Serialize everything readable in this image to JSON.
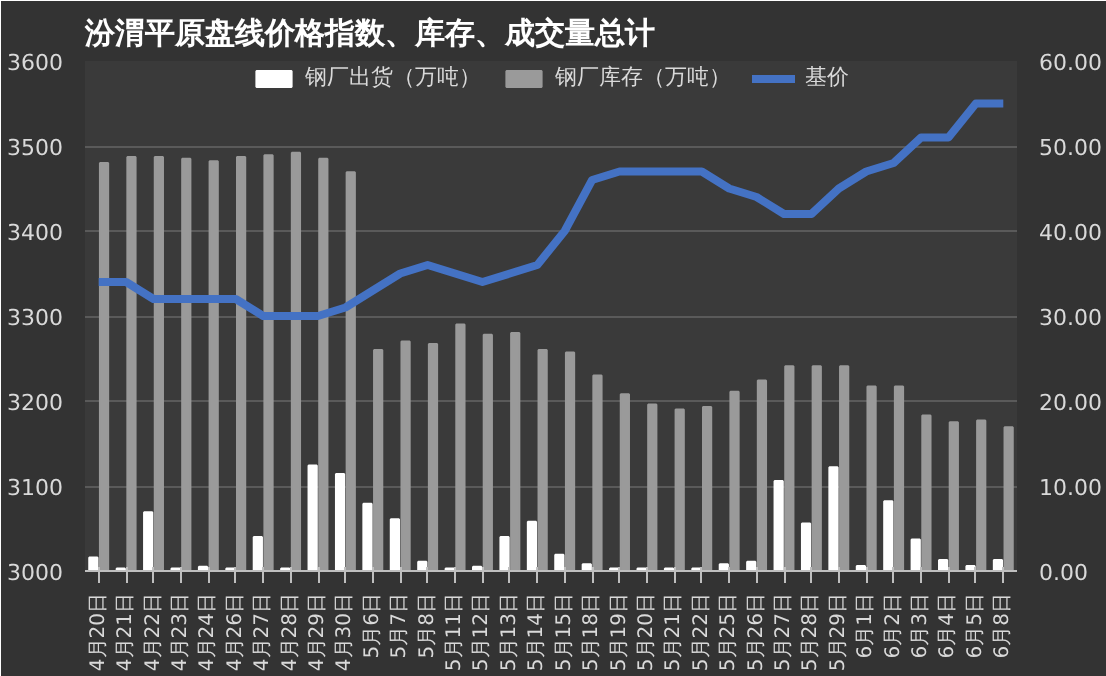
{
  "chart_data": {
    "type": "bar",
    "title": "汾渭平原盘线价格指数、库存、成交量总计",
    "categories": [
      "4月20日",
      "4月21日",
      "4月22日",
      "4月23日",
      "4月24日",
      "4月26日",
      "4月27日",
      "4月28日",
      "4月29日",
      "4月30日",
      "5月6日",
      "5月7日",
      "5月8日",
      "5月11日",
      "5月12日",
      "5月13日",
      "5月14日",
      "5月15日",
      "5月18日",
      "5月19日",
      "5月20日",
      "5月21日",
      "5月22日",
      "5月25日",
      "5月26日",
      "5月27日",
      "5月28日",
      "5月29日",
      "6月1日",
      "6月2日",
      "6月3日",
      "6月4日",
      "6月5日",
      "6月8日"
    ],
    "series": [
      {
        "name": "钢厂出货（万吨）",
        "axis": "y2",
        "color": "#ffffff",
        "values": [
          1.6,
          0.3,
          6.9,
          0.3,
          0.5,
          0.3,
          4.0,
          0.3,
          12.4,
          11.4,
          7.9,
          6.1,
          1.1,
          0.3,
          0.5,
          4.0,
          5.8,
          1.9,
          0.8,
          0.3,
          0.3,
          0.3,
          0.3,
          0.8,
          1.1,
          10.6,
          5.6,
          12.2,
          0.6,
          8.2,
          3.7,
          1.3,
          0.6,
          1.3
        ]
      },
      {
        "name": "钢厂库存（万吨）",
        "axis": "y2",
        "color": "#9a9a9a",
        "values": [
          48.0,
          48.7,
          48.7,
          48.5,
          48.2,
          48.7,
          48.9,
          49.2,
          48.5,
          46.9,
          26.0,
          27.0,
          26.7,
          29.0,
          27.8,
          28.0,
          26.0,
          25.7,
          23.0,
          20.8,
          19.6,
          19.0,
          19.3,
          21.1,
          22.4,
          24.1,
          24.1,
          24.1,
          21.7,
          21.7,
          18.3,
          17.5,
          17.7,
          16.9
        ]
      },
      {
        "name": "基价",
        "type": "line",
        "color": "#4472c4",
        "values": [
          3340,
          3340,
          3320,
          3320,
          3320,
          3320,
          3300,
          3300,
          3300,
          3310,
          3330,
          3350,
          3360,
          3350,
          3340,
          3350,
          3360,
          3400,
          3460,
          3470,
          3470,
          3470,
          3470,
          3450,
          3440,
          3420,
          3420,
          3450,
          3470,
          3480,
          3510,
          3510,
          3550,
          3550
        ]
      }
    ],
    "ylim": [
      3000,
      3600
    ],
    "yticks": [
      3000,
      3100,
      3200,
      3300,
      3400,
      3500,
      3600
    ],
    "y2lim": [
      0,
      60
    ],
    "y2ticks": [
      {
        "value": 0,
        "label": "0.00"
      },
      {
        "value": 10,
        "label": "10.00"
      },
      {
        "value": 20,
        "label": "20.00"
      },
      {
        "value": 30,
        "label": "30.00"
      },
      {
        "value": 40,
        "label": "40.00"
      },
      {
        "value": 50,
        "label": "50.00"
      },
      {
        "value": 60,
        "label": "60.00"
      }
    ],
    "grid": "y",
    "legend": "top"
  }
}
